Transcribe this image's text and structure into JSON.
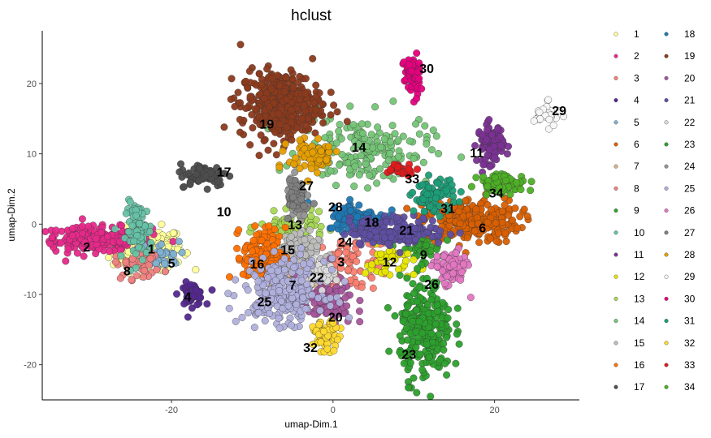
{
  "chart_data": {
    "type": "scatter",
    "title": "hclust",
    "xlabel": "umap-Dim.1",
    "ylabel": "umap-Dim.2",
    "xlim": [
      -36,
      30.5
    ],
    "ylim": [
      -25,
      27.5
    ],
    "x_ticks": [
      -20,
      0,
      20
    ],
    "y_ticks": [
      -20,
      -10,
      0,
      10,
      20
    ],
    "grid": false,
    "legend_position": "right",
    "legend_columns": 2,
    "clusters": [
      {
        "name": "1",
        "color": "#ffff99",
        "label_pos": [
          -22.5,
          -3.5
        ],
        "points": {
          "n": 200,
          "cx": -23,
          "cy": -3.5,
          "sx": 2.2,
          "sy": 1.5
        }
      },
      {
        "name": "2",
        "color": "#e7298a",
        "label_pos": [
          -30.5,
          -3.2
        ],
        "points": {
          "n": 220,
          "cx": -29.5,
          "cy": -2.2,
          "sx": 3.5,
          "sy": 0.9
        }
      },
      {
        "name": "3",
        "color": "#fb8072",
        "label_pos": [
          1,
          -5.3
        ],
        "points": {
          "n": 90,
          "cx": 2.5,
          "cy": -5.5,
          "sx": 2.5,
          "sy": 2
        }
      },
      {
        "name": "4",
        "color": "#54278f",
        "label_pos": [
          -18,
          -10.3
        ],
        "points": {
          "n": 45,
          "cx": -17.5,
          "cy": -10,
          "sx": 0.8,
          "sy": 0.8
        }
      },
      {
        "name": "5",
        "color": "#80b1d3",
        "label_pos": [
          -20,
          -5.5
        ],
        "points": {
          "n": 30,
          "cx": -21.5,
          "cy": -4.5,
          "sx": 1.2,
          "sy": 1
        }
      },
      {
        "name": "6",
        "color": "#d95f02",
        "label_pos": [
          18.5,
          -0.5
        ],
        "points": {
          "n": 260,
          "cx": 17,
          "cy": 0.5,
          "sx": 3,
          "sy": 1.6
        }
      },
      {
        "name": "7",
        "color": "#d9b38c",
        "label_pos": [
          -5,
          -8.6
        ],
        "points": {
          "n": 80,
          "cx": -4.5,
          "cy": -6.5,
          "sx": 1.5,
          "sy": 1.5
        }
      },
      {
        "name": "8",
        "color": "#f08080",
        "label_pos": [
          -25.5,
          -6.6
        ],
        "points": {
          "n": 40,
          "cx": -24,
          "cy": -5.8,
          "sx": 1.5,
          "sy": 1
        }
      },
      {
        "name": "9",
        "color": "#33a02c",
        "label_pos": [
          11.2,
          -4.3
        ],
        "points": {
          "n": 40,
          "cx": 11,
          "cy": -3.5,
          "sx": 1.2,
          "sy": 1
        }
      },
      {
        "name": "10",
        "color": "#66c2a5",
        "label_pos": [
          -13.5,
          1.8
        ],
        "points": {
          "n": 80,
          "cx": -24,
          "cy": -1,
          "sx": 0.8,
          "sy": 2
        }
      },
      {
        "name": "11",
        "color": "#7b3294",
        "label_pos": [
          17.8,
          10.2
        ],
        "points": {
          "n": 90,
          "cx": 19.5,
          "cy": 11.5,
          "sx": 0.8,
          "sy": 1.4
        }
      },
      {
        "name": "12",
        "color": "#e6e600",
        "label_pos": [
          7,
          -5.3
        ],
        "points": {
          "n": 40,
          "cx": 7,
          "cy": -5.5,
          "sx": 1.5,
          "sy": 1.2
        }
      },
      {
        "name": "13",
        "color": "#a6d854",
        "label_pos": [
          -4.7,
          0
        ],
        "points": {
          "n": 70,
          "cx": -5,
          "cy": -0.5,
          "sx": 2,
          "sy": 1
        }
      },
      {
        "name": "14",
        "color": "#74c476",
        "label_pos": [
          3.2,
          11
        ],
        "points": {
          "n": 180,
          "cx": 4,
          "cy": 10.5,
          "sx": 4,
          "sy": 2.4
        }
      },
      {
        "name": "15",
        "color": "#bdbdbd",
        "label_pos": [
          -5.6,
          -3.6
        ],
        "points": {
          "n": 90,
          "cx": -5,
          "cy": -4,
          "sx": 1.6,
          "sy": 1.5
        }
      },
      {
        "name": "16",
        "color": "#ff6f00",
        "label_pos": [
          -9.4,
          -5.6
        ],
        "points": {
          "n": 150,
          "cx": -8.5,
          "cy": -4.5,
          "sx": 1.3,
          "sy": 2
        }
      },
      {
        "name": "17",
        "color": "#4d4d4d",
        "label_pos": [
          -13.5,
          7.5
        ],
        "points": {
          "n": 80,
          "cx": -16,
          "cy": 7,
          "sx": 1.5,
          "sy": 0.8
        }
      },
      {
        "name": "18",
        "color": "#1f78b4",
        "label_pos": [
          4.8,
          0.3
        ],
        "points": {
          "n": 90,
          "cx": 3,
          "cy": 1,
          "sx": 1.8,
          "sy": 1
        }
      },
      {
        "name": "19",
        "color": "#8c3a1c",
        "label_pos": [
          -8.2,
          14.3
        ],
        "points": {
          "n": 380,
          "cx": -6.5,
          "cy": 17,
          "sx": 2.5,
          "sy": 2.4
        }
      },
      {
        "name": "20",
        "color": "#a6569c",
        "label_pos": [
          0.3,
          -13.2
        ],
        "points": {
          "n": 100,
          "cx": -1,
          "cy": -11,
          "sx": 1.8,
          "sy": 1.7
        }
      },
      {
        "name": "21",
        "color": "#5e4fa2",
        "label_pos": [
          9.1,
          -0.8
        ],
        "points": {
          "n": 170,
          "cx": 8,
          "cy": -1,
          "sx": 3,
          "sy": 1
        }
      },
      {
        "name": "22",
        "color": "#dcdcdc",
        "label_pos": [
          -2,
          -7.5
        ],
        "points": {
          "n": 40,
          "cx": -2,
          "cy": -7,
          "sx": 1,
          "sy": 0.8
        }
      },
      {
        "name": "23",
        "color": "#2ca02c",
        "label_pos": [
          9.4,
          -18.5
        ],
        "points": {
          "n": 270,
          "cx": 11.5,
          "cy": -15,
          "sx": 1.6,
          "sy": 3.5
        }
      },
      {
        "name": "24",
        "color": "#969696",
        "label_pos": [
          1.5,
          -2.5
        ],
        "points": {
          "n": 100,
          "cx": -4.5,
          "cy": 3.5,
          "sx": 0.6,
          "sy": 1.5
        }
      },
      {
        "name": "25",
        "color": "#b0b0dd",
        "label_pos": [
          -8.5,
          -11
        ],
        "points": {
          "n": 260,
          "cx": -6,
          "cy": -9.5,
          "sx": 2.5,
          "sy": 2.2
        }
      },
      {
        "name": "26",
        "color": "#e377c2",
        "label_pos": [
          12.2,
          -8.5
        ],
        "points": {
          "n": 80,
          "cx": 14.5,
          "cy": -6.5,
          "sx": 1,
          "sy": 1.3
        }
      },
      {
        "name": "27",
        "color": "#7f7f7f",
        "label_pos": [
          -3.3,
          5.5
        ],
        "points": {
          "n": 40,
          "cx": -4.5,
          "cy": 4,
          "sx": 0.5,
          "sy": 1.2
        }
      },
      {
        "name": "28",
        "color": "#e69f00",
        "label_pos": [
          0.3,
          2.5
        ],
        "points": {
          "n": 70,
          "cx": -2.5,
          "cy": 9.5,
          "sx": 1.5,
          "sy": 1.2
        }
      },
      {
        "name": "29",
        "color": "#f7f7f7",
        "label_pos": [
          28,
          16.2
        ],
        "points": {
          "n": 30,
          "cx": 26.5,
          "cy": 15.5,
          "sx": 0.8,
          "sy": 0.8
        }
      },
      {
        "name": "30",
        "color": "#e6007e",
        "label_pos": [
          11.6,
          22.2
        ],
        "points": {
          "n": 70,
          "cx": 9.8,
          "cy": 21,
          "sx": 0.5,
          "sy": 1.5
        }
      },
      {
        "name": "31",
        "color": "#1b9e77",
        "label_pos": [
          14.2,
          2.3
        ],
        "points": {
          "n": 80,
          "cx": 12.5,
          "cy": 4,
          "sx": 1.3,
          "sy": 1.2
        }
      },
      {
        "name": "32",
        "color": "#ffd92f",
        "label_pos": [
          -2.8,
          -17.5
        ],
        "points": {
          "n": 60,
          "cx": -0.8,
          "cy": -16,
          "sx": 0.8,
          "sy": 1
        }
      },
      {
        "name": "33",
        "color": "#e31a1c",
        "label_pos": [
          9.8,
          6.5
        ],
        "points": {
          "n": 40,
          "cx": 8.5,
          "cy": 7.8,
          "sx": 1,
          "sy": 0.4
        }
      },
      {
        "name": "34",
        "color": "#4daf25",
        "label_pos": [
          20.2,
          4.5
        ],
        "points": {
          "n": 80,
          "cx": 21,
          "cy": 5.8,
          "sx": 1.5,
          "sy": 0.7
        }
      }
    ]
  }
}
